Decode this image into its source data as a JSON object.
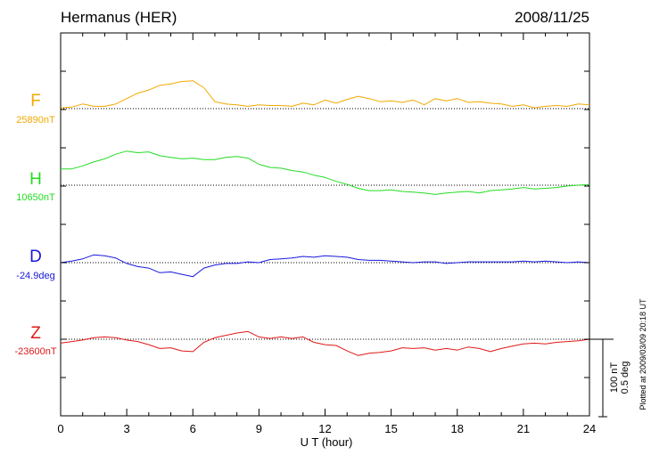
{
  "header": {
    "station": "Hermanus (HER)",
    "date": "2008/11/25"
  },
  "side_note": "Plotted at 2009/03/09 20:18 UT",
  "scale": {
    "nt": "100 nT",
    "deg": "0.5 deg"
  },
  "colors": {
    "F": "#f2a800",
    "H": "#22dd22",
    "D": "#1818dd",
    "Z": "#e01818",
    "axis": "#000000"
  },
  "chart_data": {
    "type": "line",
    "xlabel": "U T (hour)",
    "xlim": [
      0,
      24
    ],
    "xticks": [
      0,
      3,
      6,
      9,
      12,
      15,
      18,
      21,
      24
    ],
    "grid": "dotted baseline per trace, minor ticks every hour",
    "series": [
      {
        "name": "F",
        "label": "F",
        "base_label": "25890nT",
        "unit": "nT",
        "baseline": 25890,
        "x": [
          0,
          0.5,
          1,
          1.5,
          2,
          2.5,
          3,
          3.5,
          4,
          4.5,
          5,
          5.5,
          6,
          6.5,
          7,
          7.5,
          8,
          8.5,
          9,
          9.5,
          10,
          10.5,
          11,
          11.5,
          12,
          12.5,
          13,
          13.5,
          14,
          14.5,
          15,
          15.5,
          16,
          16.5,
          17,
          17.5,
          18,
          18.5,
          19,
          19.5,
          20,
          20.5,
          21,
          21.5,
          22,
          22.5,
          23,
          23.5,
          24
        ],
        "y": [
          25891,
          25892,
          25896,
          25893,
          25893,
          25896,
          25903,
          25910,
          25914,
          25920,
          25922,
          25925,
          25926,
          25917,
          25899,
          25896,
          25895,
          25893,
          25895,
          25894,
          25894,
          25893,
          25897,
          25895,
          25901,
          25897,
          25902,
          25906,
          25903,
          25899,
          25900,
          25898,
          25901,
          25895,
          25903,
          25900,
          25903,
          25898,
          25899,
          25897,
          25896,
          25893,
          25895,
          25891,
          25893,
          25894,
          25893,
          25896,
          25895
        ]
      },
      {
        "name": "H",
        "label": "H",
        "base_label": "10650nT",
        "unit": "nT",
        "baseline": 10650,
        "x": [
          0,
          0.5,
          1,
          1.5,
          2,
          2.5,
          3,
          3.5,
          4,
          4.5,
          5,
          5.5,
          6,
          6.5,
          7,
          7.5,
          8,
          8.5,
          9,
          9.5,
          10,
          10.5,
          11,
          11.5,
          12,
          12.5,
          13,
          13.5,
          14,
          14.5,
          15,
          15.5,
          16,
          16.5,
          17,
          17.5,
          18,
          18.5,
          19,
          19.5,
          20,
          20.5,
          21,
          21.5,
          22,
          22.5,
          23,
          23.5,
          24
        ],
        "y": [
          10671,
          10671,
          10675,
          10680,
          10684,
          10690,
          10694,
          10692,
          10693,
          10688,
          10686,
          10684,
          10685,
          10683,
          10683,
          10686,
          10687,
          10685,
          10677,
          10673,
          10672,
          10669,
          10667,
          10663,
          10660,
          10655,
          10651,
          10646,
          10643,
          10643,
          10644,
          10642,
          10641,
          10640,
          10638,
          10640,
          10641,
          10642,
          10640,
          10643,
          10644,
          10645,
          10647,
          10645,
          10646,
          10647,
          10649,
          10650,
          10651
        ]
      },
      {
        "name": "D",
        "label": "D",
        "base_label": "-24.9deg",
        "unit": "deg",
        "baseline": -24.9,
        "x": [
          0,
          0.5,
          1,
          1.5,
          2,
          2.5,
          3,
          3.5,
          4,
          4.5,
          5,
          5.5,
          6,
          6.5,
          7,
          7.5,
          8,
          8.5,
          9,
          9.5,
          10,
          10.5,
          11,
          11.5,
          12,
          12.5,
          13,
          13.5,
          14,
          14.5,
          15,
          15.5,
          16,
          16.5,
          17,
          17.5,
          18,
          18.5,
          19,
          19.5,
          20,
          20.5,
          21,
          21.5,
          22,
          22.5,
          23,
          23.5,
          24
        ],
        "y": [
          -24.9,
          -24.89,
          -24.875,
          -24.85,
          -24.855,
          -24.87,
          -24.905,
          -24.925,
          -24.935,
          -24.965,
          -24.96,
          -24.975,
          -24.99,
          -24.935,
          -24.915,
          -24.905,
          -24.905,
          -24.895,
          -24.9,
          -24.88,
          -24.875,
          -24.87,
          -24.86,
          -24.865,
          -24.855,
          -24.86,
          -24.865,
          -24.88,
          -24.885,
          -24.885,
          -24.89,
          -24.895,
          -24.9,
          -24.895,
          -24.895,
          -24.905,
          -24.9,
          -24.895,
          -24.895,
          -24.895,
          -24.895,
          -24.895,
          -24.89,
          -24.895,
          -24.89,
          -24.895,
          -24.9,
          -24.895,
          -24.9
        ]
      },
      {
        "name": "Z",
        "label": "Z",
        "base_label": "-23600nT",
        "unit": "nT",
        "baseline": -23600,
        "x": [
          0,
          0.5,
          1,
          1.5,
          2,
          2.5,
          3,
          3.5,
          4,
          4.5,
          5,
          5.5,
          6,
          6.5,
          7,
          7.5,
          8,
          8.5,
          9,
          9.5,
          10,
          10.5,
          11,
          11.5,
          12,
          12.5,
          13,
          13.5,
          14,
          14.5,
          15,
          15.5,
          16,
          16.5,
          17,
          17.5,
          18,
          18.5,
          19,
          19.5,
          20,
          20.5,
          21,
          21.5,
          22,
          22.5,
          23,
          23.5,
          24
        ],
        "y": [
          -23605,
          -23603,
          -23601,
          -23598,
          -23597,
          -23598,
          -23601,
          -23603,
          -23607,
          -23612,
          -23611,
          -23615,
          -23616,
          -23604,
          -23598,
          -23595,
          -23592,
          -23590,
          -23597,
          -23599,
          -23597,
          -23599,
          -23597,
          -23604,
          -23607,
          -23608,
          -23615,
          -23621,
          -23618,
          -23617,
          -23615,
          -23611,
          -23612,
          -23611,
          -23614,
          -23612,
          -23614,
          -23610,
          -23612,
          -23616,
          -23612,
          -23609,
          -23606,
          -23605,
          -23606,
          -23604,
          -23603,
          -23602,
          -23600
        ]
      }
    ]
  }
}
